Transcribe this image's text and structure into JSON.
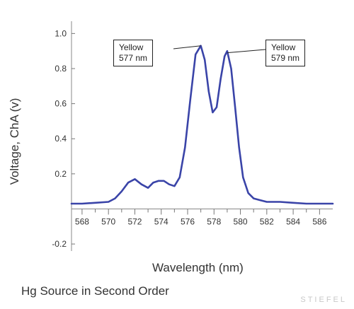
{
  "chart_data": {
    "type": "line",
    "title": "",
    "caption": "Hg Source in Second Order",
    "xlabel": "Wavelength (nm)",
    "ylabel": "Voltage, ChA (v)",
    "xlim": [
      567.2,
      587.0
    ],
    "ylim": [
      -0.24,
      1.07
    ],
    "x_ticks": [
      568,
      570,
      572,
      574,
      576,
      578,
      580,
      582,
      584,
      586
    ],
    "y_ticks": [
      1.0,
      0.8,
      0.6,
      0.4,
      0.2,
      -0.2
    ],
    "line_color": "#3a44a8",
    "annotations": [
      {
        "line1": "Yellow",
        "line2": "577 nm",
        "x": 577.0,
        "y": 0.93
      },
      {
        "line1": "Yellow",
        "line2": "579 nm",
        "x": 579.0,
        "y": 0.89
      }
    ],
    "series": [
      {
        "x": [
          567.2,
          568.0,
          569.0,
          570.0,
          570.5,
          571.0,
          571.5,
          572.0,
          572.5,
          573.0,
          573.4,
          573.8,
          574.2,
          574.6,
          575.0,
          575.4,
          575.8,
          576.2,
          576.6,
          577.0,
          577.3,
          577.6,
          577.9,
          578.2,
          578.5,
          578.8,
          579.0,
          579.3,
          579.6,
          579.9,
          580.2,
          580.6,
          581.0,
          581.5,
          582.0,
          583.0,
          584.0,
          585.0,
          586.0,
          587.0
        ],
        "y": [
          0.03,
          0.03,
          0.035,
          0.04,
          0.06,
          0.1,
          0.15,
          0.17,
          0.14,
          0.12,
          0.15,
          0.16,
          0.16,
          0.14,
          0.13,
          0.18,
          0.35,
          0.62,
          0.88,
          0.93,
          0.85,
          0.67,
          0.55,
          0.58,
          0.74,
          0.87,
          0.9,
          0.8,
          0.58,
          0.35,
          0.18,
          0.09,
          0.06,
          0.05,
          0.04,
          0.04,
          0.035,
          0.03,
          0.03,
          0.03
        ]
      }
    ]
  }
}
